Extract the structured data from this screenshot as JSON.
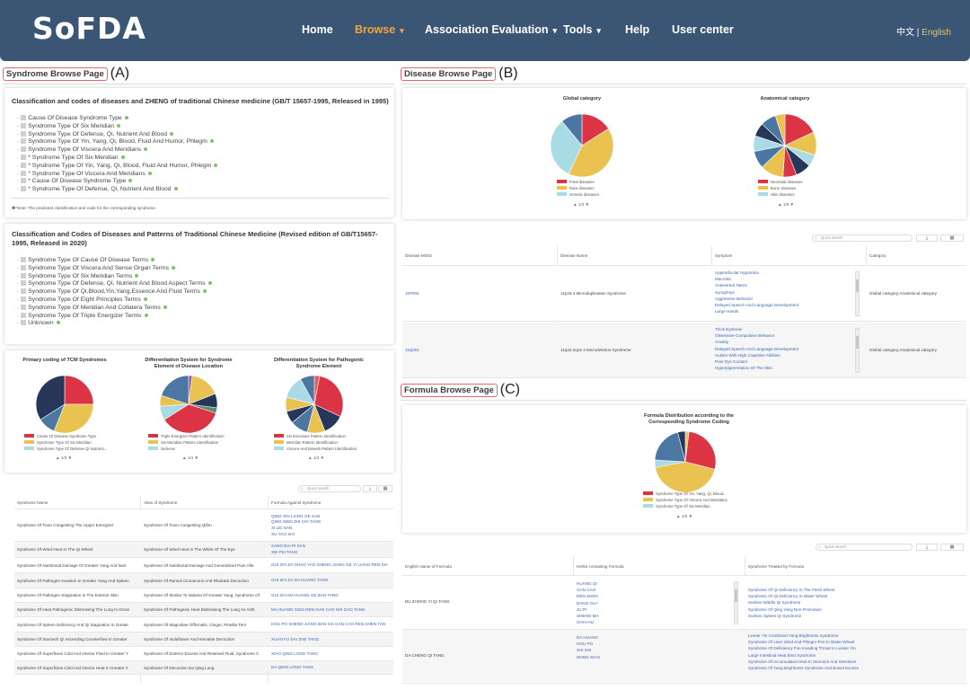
{
  "nav": {
    "logo": "SoFDA",
    "items": [
      {
        "label": "Home",
        "active": false,
        "dropdown": false
      },
      {
        "label": "Browse",
        "active": true,
        "dropdown": true
      },
      {
        "label": "Association Evaluation",
        "active": false,
        "dropdown": true
      },
      {
        "label": "Tools",
        "active": false,
        "dropdown": true
      },
      {
        "label": "Help",
        "active": false,
        "dropdown": false
      },
      {
        "label": "User center",
        "active": false,
        "dropdown": false
      }
    ],
    "lang_zh": "中文",
    "lang_sep": " | ",
    "lang_en": "English"
  },
  "colors": {
    "nav_bg": "#3b5675",
    "active": "#f0a63a",
    "red": "#dc3345",
    "yellow": "#e9c24f",
    "lightblue": "#a9dbe4",
    "steel": "#4d77a3",
    "navy": "#26375a",
    "link": "#3a64b6"
  },
  "sections": {
    "a": {
      "tag": "Syndrome Browse Page",
      "label": "(A)"
    },
    "b": {
      "tag": "Disease Browse Page",
      "label": "(B)"
    },
    "c": {
      "tag": "Formula Browse Page",
      "label": "(C)"
    }
  },
  "syndrome": {
    "card1": {
      "title": "Classification and codes of diseases and ZHENG of traditional Chinese medicine (GB/T 15657-1995, Released in 1995)",
      "items": [
        "Cause Of Disease Syndrome Type",
        "Syndrome Type Of Six Meridian",
        "Syndrome Type Of Defense, Qi, Nutrient And Blood",
        "Syndrome Type Of Yin, Yang, Qi, Blood, Fluid And Humor, Phlegm",
        "Syndrome Type Of Viscera And Meridians",
        "* Syndrome Type Of Six Meridian",
        "* Syndrome Type Of Yin, Yang, Qi, Blood, Fluid And Humor, Phlegm",
        "* Syndrome Type Of Viscera And Meridians",
        "* Cause Of Disease Syndrome Type",
        "* Syndrome Type Of Defense, Qi, Nutrient And Blood"
      ],
      "note": "*Note:  The predicted classification and code for the corresponding syndrome."
    },
    "card2": {
      "title": "Classification and Codes of Diseases and Patterns of Traditional Chinese Medicine (Revised edition of GB/T15657-1995, Released in 2020)",
      "items": [
        "Syndrome Type Of Cause Of Disease Terms",
        "Syndrome Type Of Viscera And Sense Organ Terms",
        "Syndrome Type Of Six Meridian Terms",
        "Syndrome Type Of Defense, Qi, Nutrient And Blood Aspect Terms",
        "Syndrome Type Of Qi,Blood,Yin,Yang,Essence And Fluid Terms",
        "Syndrome Type Of Eight Principles Terms",
        "Syndrome Type Of Meridian And Collatera Terms",
        "Syndrome Type Of Triple Energizer Terms",
        "Unknown"
      ]
    },
    "pies": [
      {
        "title": "Primary coding of TCM Syndromes",
        "legend": [
          "Cause Of Disease Syndrome Type",
          "Syndrome Type Of Six Meridian",
          "Syndrome Type Of Defense Qi Nutrient..."
        ],
        "pager": "1/3",
        "slices": [
          {
            "v": 0.25,
            "c": "#dc3345"
          },
          {
            "v": 0.31,
            "c": "#e9c24f"
          },
          {
            "v": 0.1,
            "c": "#4d77a3"
          },
          {
            "v": 0.34,
            "c": "#26375a"
          }
        ]
      },
      {
        "title": "Differentiation System for Syndrome Element of Disease Location",
        "legend": [
          "Triple Energizer Pattern Identification",
          "Six-Meridian Pattern Identification",
          "Defense"
        ],
        "pager": "1/4",
        "slices": [
          {
            "v": 0.02,
            "c": "#8f5a9c"
          },
          {
            "v": 0.17,
            "c": "#e9c24f"
          },
          {
            "v": 0.08,
            "c": "#26375a"
          },
          {
            "v": 0.03,
            "c": "#5b8f6b"
          },
          {
            "v": 0.36,
            "c": "#dc3345"
          },
          {
            "v": 0.08,
            "c": "#a9dbe4"
          },
          {
            "v": 0.06,
            "c": "#e9c24f"
          },
          {
            "v": 0.2,
            "c": "#4d77a3"
          }
        ]
      },
      {
        "title": "Differentiation System for Pathogenic Syndrome Element",
        "legend": [
          "Six Excesses Pattern Identification",
          "Meridian Pattern Identification",
          "Viscera And Bowels Pattern Identification"
        ],
        "pager": "1/4",
        "slices": [
          {
            "v": 0.03,
            "c": "#e35a63"
          },
          {
            "v": 0.29,
            "c": "#dc3345"
          },
          {
            "v": 0.12,
            "c": "#26375a"
          },
          {
            "v": 0.1,
            "c": "#e9c24f"
          },
          {
            "v": 0.1,
            "c": "#4d77a3"
          },
          {
            "v": 0.07,
            "c": "#26375a"
          },
          {
            "v": 0.08,
            "c": "#e9c24f"
          },
          {
            "v": 0.13,
            "c": "#a9dbe4"
          },
          {
            "v": 0.08,
            "c": "#4d77a3"
          }
        ]
      }
    ],
    "table": {
      "search": "Quick search",
      "headers": [
        "Syndrome Name",
        "Alias of Syndrome",
        "Formula Against Syndrome"
      ],
      "rows": [
        {
          "name": "Syndrome Of Toxin Congesting The Upper Energizer",
          "alias": "Syndrome Of Toxin Congesting Qifen",
          "formula": [
            "QING XIN LIANG GE SAN",
            "QING WEN ZHI CHI TANG",
            "XI LEI SAN",
            "XU YAO SHI"
          ]
        },
        {
          "name": "Syndrome Of Wind-Heat In The Qi Wheel",
          "alias": "Syndrome Of Wind-Heat In The White Of The Eye",
          "formula": [
            "SANG BAI PI SAN",
            "XIE FEI TANG"
          ]
        },
        {
          "name": "Syndrome Of Nutritional Damage Of Greater Yang And Nutr",
          "alias": "Syndrome Of Nutritional Damage And Generalized Pain Afte",
          "formula": [
            "GUI ZHI JIA SHAO YAO SHENG JIANG GE YI LIANG REN SH"
          ]
        },
        {
          "name": "Syndrome Of Pathogen Invasion In Greater Yang And Spleen",
          "alias": "Syndrome Of Ramuli Cinnamomi And Rhubarb Decoction",
          "formula": [
            "GUI ZHI JIA DA HUANG TANG"
          ]
        },
        {
          "name": "Syndrome Of Pathogen Stagnation In The Exterior Skin",
          "alias": "Syndrome Of Similar To Malaria Of Greater Yang, Syndrome Of",
          "formula": [
            "GUI ZHI MA HUANG GE BAN TANG"
          ]
        },
        {
          "name": "Syndrome Of Heat Pathogenic Distressing The Lung In Great",
          "alias": "Syndrome Of Pathogenic Heat Distressing The Lung As Asth",
          "formula": [
            "MA HUANG XING REN GAN CAO SHI GAO TANG"
          ]
        },
        {
          "name": "Syndrome Of Spleen Deficiency And Qi Stagnation In Greate",
          "alias": "Syndrome Of Magnoliae Officinalis, Ginger, Pinellia Tern",
          "formula": [
            "HOU PO SHENG JIANG BAN XIA GAN CAO REN SHEN TAN"
          ]
        },
        {
          "name": "Syndrome Of Stomach Qi Ascending Counterflow In Greater",
          "alias": "Syndrome Of Inulaflower And Hematite Decoction",
          "formula": [
            "XUAN FU DAI ZHE TANG"
          ]
        },
        {
          "name": "Syndrome Of Superficies Cold And Interior Fluid In Greater Y",
          "alias": "Syndrome Of Exterior Excess And Retained Fluid, Syndrome C",
          "formula": [
            "XIAO QING LONG TANG"
          ]
        },
        {
          "name": "Syndrome Of Superficies Cold And Interior Heat In Greater Y",
          "alias": "Syndrome Of Decoction Da Qing Long",
          "formula": [
            "DA QING LONG TANG"
          ]
        }
      ]
    }
  },
  "disease": {
    "pies": [
      {
        "title": "Global category",
        "legend": [
          "Fetal diseases",
          "Rare diseases",
          "Genetic diseases"
        ],
        "pager": "1/3",
        "slices": [
          {
            "v": 0.16,
            "c": "#dc3345"
          },
          {
            "v": 0.41,
            "c": "#e9c24f"
          },
          {
            "v": 0.32,
            "c": "#a9dbe4"
          },
          {
            "v": 0.11,
            "c": "#4d77a3"
          }
        ]
      },
      {
        "title": "Anatomical category",
        "legend": [
          "Neonatal diseases",
          "Bone diseases",
          "Skin diseases"
        ],
        "pager": "1/9",
        "slices": [
          {
            "v": 0.18,
            "c": "#dc3345"
          },
          {
            "v": 0.12,
            "c": "#e9c24f"
          },
          {
            "v": 0.06,
            "c": "#a9dbe4"
          },
          {
            "v": 0.08,
            "c": "#26375a"
          },
          {
            "v": 0.07,
            "c": "#dc3345"
          },
          {
            "v": 0.12,
            "c": "#e9c24f"
          },
          {
            "v": 0.09,
            "c": "#4d77a3"
          },
          {
            "v": 0.08,
            "c": "#a9dbe4"
          },
          {
            "v": 0.07,
            "c": "#26375a"
          },
          {
            "v": 0.08,
            "c": "#4d77a3"
          },
          {
            "v": 0.05,
            "c": "#e9c24f"
          }
        ]
      }
    ],
    "table": {
      "search": "Quick search",
      "headers": [
        "Disease MOID",
        "Disease Name",
        "Symptom",
        "Category"
      ],
      "rows": [
        {
          "id": "11P002",
          "name": "11p15.4 Microduplication Syndrome",
          "symptoms": [
            "Appendicular Hypotonia",
            "Macrotia",
            "Anteverted Nares",
            "Synophrys",
            "Aggressive Behavior",
            "Delayed Speech And Language Development",
            "Large Hands"
          ],
          "category": "Global category;Anatomical category"
        },
        {
          "id": "11Q001",
          "name": "11q22.2q22.3 Microdeletion Syndrome",
          "symptoms": [
            "Thick Eyebrow",
            "Obsessive-Compulsive Behavior",
            "Anxiety",
            "Delayed Speech And Language Development",
            "Autism With High Cognitive Abilities",
            "Poor Eye Contact",
            "Hyperpigmentation Of The Skin"
          ],
          "category": "Global category;Anatomical category"
        }
      ]
    }
  },
  "formula": {
    "pie": {
      "title": "Formula Distribution according to the Corresponding Syndrome Coding",
      "legend": [
        "Syndrome Type Of Yin, Yang, Qi, Blood...",
        "Syndrome Type Of Viscera And Meridians",
        "Syndrome Type Of Six Meridian"
      ],
      "pager": "1/5",
      "slices": [
        {
          "v": 0.02,
          "c": "#e9c24f"
        },
        {
          "v": 0.27,
          "c": "#dc3345"
        },
        {
          "v": 0.43,
          "c": "#e9c24f"
        },
        {
          "v": 0.04,
          "c": "#a9dbe4"
        },
        {
          "v": 0.2,
          "c": "#4d77a3"
        },
        {
          "v": 0.04,
          "c": "#26375a"
        }
      ]
    },
    "table": {
      "search": "Quick search",
      "headers": [
        "English Name of Formula",
        "Herbs containing Formula",
        "Syndrome Treated by Formula"
      ],
      "rows": [
        {
          "name": "BU ZHONG YI QI TANG",
          "herbs": [
            "HUANG QI",
            "GAN CAO",
            "REN SHEN",
            "DANG GUI",
            "JU PI",
            "SHENG MA",
            "CHAI HU"
          ],
          "syndromes": [
            "Syndrome Of Qi Deficiency In The Flesh Wheel",
            "Syndrome Of Qi Deficiency In Water Wheel",
            "Sunken Middle Qi Syndrome",
            "Syndrome Of Qing Yang Non-Promotion",
            "Sunken Spleen Qi Syndrome"
          ]
        },
        {
          "name": "DA CHENG QI TANG",
          "herbs": [
            "DA HUANG",
            "HOU PO",
            "ZHI SHI",
            "MANG XIAO"
          ],
          "syndromes": [
            "Lesser Yin Combined Yang Brightness Syndrome",
            "Syndrome Of Liver Wind And Phlegm-Fire In Water Wheel",
            "Syndrome Of Deficiency Fire Invading Throat In Lesser Yin",
            "Large Intestinal Heat Bind Syndrome",
            "Syndrome Of Accumulated Heat In Stomach And Intestines",
            "Syndrome Of Yang Brightness Syndrome And Bowel Excess"
          ]
        }
      ]
    }
  }
}
